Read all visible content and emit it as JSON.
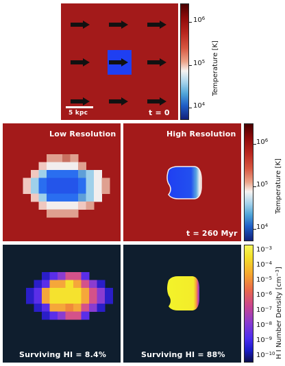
{
  "top_panel": {
    "scale_bar_label": "5 kpc",
    "time_label": "t = 0"
  },
  "middle_row": {
    "left_title": "Low Resolution",
    "right_title": "High Resolution",
    "time_label": "t = 260 Myr"
  },
  "bottom_row": {
    "left_caption": "Surviving HI = 8.4%",
    "right_caption": "Surviving HI = 88%"
  },
  "colorbar_temperature": {
    "label": "Temperature [K]",
    "ticks": [
      {
        "base": "10",
        "exp": "6"
      },
      {
        "base": "10",
        "exp": "5"
      },
      {
        "base": "10",
        "exp": "4"
      }
    ]
  },
  "colorbar_hi": {
    "label": "H I Number Density [cm",
    "label_exp": "−3",
    "label_end": "]",
    "ticks": [
      {
        "base": "10",
        "exp": "−3"
      },
      {
        "base": "10",
        "exp": "−4"
      },
      {
        "base": "10",
        "exp": "−5"
      },
      {
        "base": "10",
        "exp": "−6"
      },
      {
        "base": "10",
        "exp": "−7"
      },
      {
        "base": "10",
        "exp": "−8"
      },
      {
        "base": "10",
        "exp": "−9"
      },
      {
        "base": "10",
        "exp": "−10"
      }
    ]
  },
  "colors": {
    "hot_background": "#a31a1a",
    "cold_cloud": "#1f3ff2",
    "dark_background": "#0f1e2e",
    "hi_peak": "#f3f32a"
  }
}
